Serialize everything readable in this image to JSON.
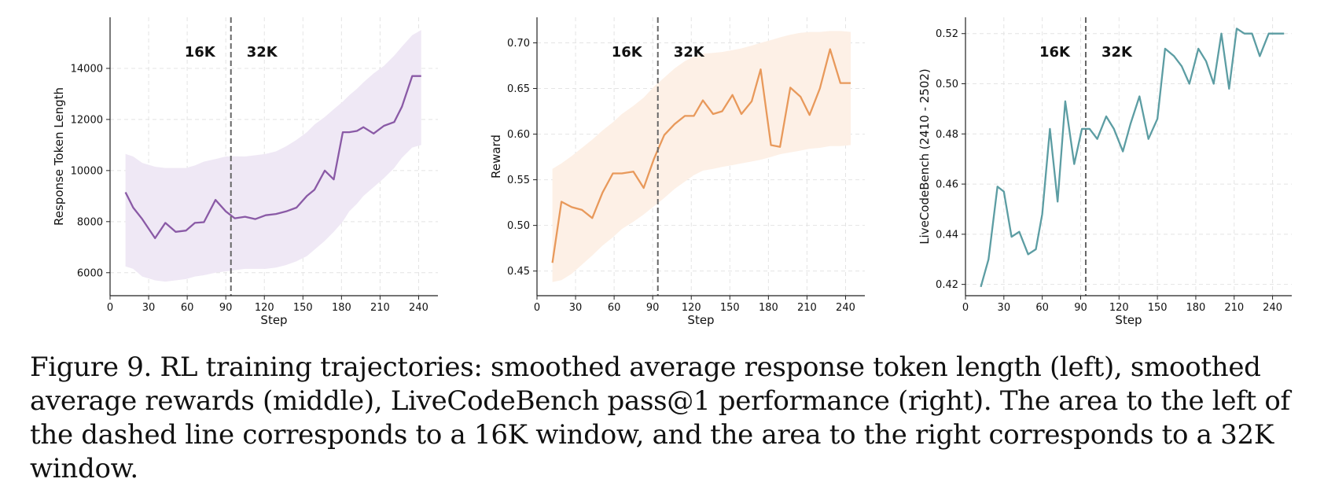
{
  "caption": "Figure 9. RL training trajectories: smoothed average response token length (left), smoothed average rewards (middle), LiveCodeBench pass@1 performance (right). The area to the left of the dashed line corresponds to a 16K window, and the area to the right corresponds to a 32K window.",
  "chart_data": [
    {
      "type": "line",
      "title": "",
      "xlabel": "Step",
      "ylabel": "Response Token Length",
      "xlim": [
        0,
        255
      ],
      "ylim": [
        5100,
        16000
      ],
      "xticks": [
        0,
        30,
        60,
        90,
        120,
        150,
        180,
        210,
        240
      ],
      "yticks": [
        6000,
        8000,
        10000,
        12000,
        14000
      ],
      "ytick_labels": [
        "6000",
        "8000",
        "10000",
        "12000",
        "14000"
      ],
      "color": "#8a5aa6",
      "band_color": "#efe8f5",
      "grid": true,
      "divider_x": 94,
      "regions": [
        "16K",
        "32K"
      ],
      "series": [
        {
          "x": [
            12,
            18,
            25,
            35,
            43,
            51,
            59,
            66,
            73,
            82,
            90,
            97,
            105,
            113,
            121,
            129,
            137,
            145,
            153,
            159,
            167,
            174,
            181,
            186,
            192,
            197,
            205,
            213,
            221,
            227,
            235,
            242
          ],
          "y": [
            9150,
            8550,
            8100,
            7350,
            7950,
            7600,
            7650,
            7950,
            7980,
            8850,
            8400,
            8130,
            8190,
            8100,
            8250,
            8300,
            8400,
            8550,
            9000,
            9250,
            10000,
            9650,
            11500,
            11500,
            11550,
            11700,
            11450,
            11750,
            11900,
            12500,
            13700,
            13700
          ],
          "upper": [
            10650,
            10550,
            10300,
            10150,
            10100,
            10100,
            10100,
            10200,
            10350,
            10450,
            10550,
            10560,
            10550,
            10600,
            10650,
            10750,
            10950,
            11200,
            11500,
            11800,
            12100,
            12400,
            12700,
            12950,
            13200,
            13450,
            13800,
            14100,
            14500,
            14850,
            15300,
            15500
          ],
          "lower": [
            6250,
            6150,
            5850,
            5700,
            5650,
            5700,
            5750,
            5850,
            5900,
            6000,
            6050,
            6100,
            6150,
            6150,
            6150,
            6200,
            6300,
            6450,
            6650,
            6900,
            7250,
            7600,
            8000,
            8400,
            8700,
            9000,
            9350,
            9700,
            10100,
            10500,
            10900,
            11000
          ]
        }
      ]
    },
    {
      "type": "line",
      "title": "",
      "xlabel": "Step",
      "ylabel": "Reward",
      "xlim": [
        0,
        255
      ],
      "ylim": [
        0.423,
        0.728
      ],
      "xticks": [
        0,
        30,
        60,
        90,
        120,
        150,
        180,
        210,
        240
      ],
      "yticks": [
        0.45,
        0.5,
        0.55,
        0.6,
        0.65,
        0.7
      ],
      "ytick_labels": [
        "0.45",
        "0.50",
        "0.55",
        "0.60",
        "0.65",
        "0.70"
      ],
      "color": "#e8995b",
      "band_color": "#fdf0e6",
      "grid": true,
      "divider_x": 94,
      "regions": [
        "16K",
        "32K"
      ],
      "series": [
        {
          "x": [
            12,
            19,
            27,
            35,
            43,
            51,
            59,
            66,
            75,
            83,
            91,
            99,
            107,
            115,
            122,
            129,
            137,
            144,
            152,
            159,
            167,
            174,
            182,
            189,
            197,
            205,
            212,
            220,
            228,
            236,
            244
          ],
          "y": [
            0.459,
            0.526,
            0.52,
            0.517,
            0.508,
            0.536,
            0.557,
            0.557,
            0.559,
            0.541,
            0.573,
            0.599,
            0.611,
            0.62,
            0.62,
            0.637,
            0.622,
            0.625,
            0.643,
            0.622,
            0.636,
            0.671,
            0.588,
            0.586,
            0.651,
            0.641,
            0.621,
            0.65,
            0.693,
            0.656,
            0.656
          ],
          "upper": [
            0.562,
            0.568,
            0.576,
            0.585,
            0.594,
            0.604,
            0.613,
            0.622,
            0.631,
            0.64,
            0.652,
            0.662,
            0.672,
            0.68,
            0.685,
            0.688,
            0.689,
            0.69,
            0.692,
            0.694,
            0.697,
            0.7,
            0.703,
            0.706,
            0.709,
            0.711,
            0.712,
            0.712,
            0.713,
            0.713,
            0.712
          ],
          "lower": [
            0.438,
            0.44,
            0.447,
            0.457,
            0.467,
            0.478,
            0.487,
            0.496,
            0.504,
            0.512,
            0.521,
            0.53,
            0.54,
            0.548,
            0.555,
            0.56,
            0.562,
            0.564,
            0.566,
            0.568,
            0.57,
            0.572,
            0.575,
            0.578,
            0.58,
            0.582,
            0.584,
            0.585,
            0.587,
            0.587,
            0.588
          ]
        }
      ]
    },
    {
      "type": "line",
      "title": "",
      "xlabel": "Step",
      "ylabel": "LiveCodeBench (2410 - 2502)",
      "xlim": [
        0,
        255
      ],
      "ylim": [
        0.4155,
        0.5265
      ],
      "xticks": [
        0,
        30,
        60,
        90,
        120,
        150,
        180,
        210,
        240
      ],
      "yticks": [
        0.42,
        0.44,
        0.46,
        0.48,
        0.5,
        0.52
      ],
      "ytick_labels": [
        "0.42",
        "0.44",
        "0.46",
        "0.48",
        "0.50",
        "0.52"
      ],
      "color": "#5c9da3",
      "band_color": null,
      "grid": true,
      "divider_x": 94,
      "regions": [
        "16K",
        "32K"
      ],
      "series": [
        {
          "x": [
            12,
            18,
            25,
            30,
            36,
            42,
            49,
            55,
            60,
            66,
            72,
            78,
            85,
            91,
            97,
            103,
            110,
            116,
            123,
            129,
            136,
            143,
            150,
            156,
            163,
            169,
            175,
            182,
            188,
            194,
            200,
            206,
            212,
            218,
            224,
            230,
            237,
            243,
            249
          ],
          "y": [
            0.419,
            0.43,
            0.459,
            0.457,
            0.439,
            0.441,
            0.432,
            0.434,
            0.448,
            0.482,
            0.453,
            0.493,
            0.468,
            0.482,
            0.482,
            0.478,
            0.487,
            0.482,
            0.473,
            0.484,
            0.495,
            0.478,
            0.486,
            0.514,
            0.511,
            0.507,
            0.5,
            0.514,
            0.509,
            0.5,
            0.52,
            0.498,
            0.522,
            0.52,
            0.52,
            0.511,
            0.52,
            0.52,
            0.52
          ]
        }
      ]
    }
  ]
}
